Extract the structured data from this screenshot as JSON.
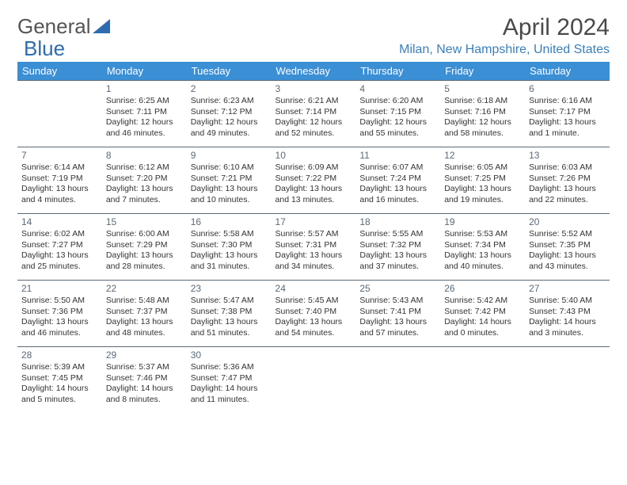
{
  "brand": {
    "part1": "General",
    "part2": "Blue"
  },
  "title": "April 2024",
  "location": "Milan, New Hampshire, United States",
  "colors": {
    "header_bg": "#3b8fd4",
    "header_text": "#ffffff",
    "border": "#5a6a78",
    "location_text": "#3b7fb8",
    "logo_gray": "#555555",
    "logo_blue": "#2e6bb0"
  },
  "day_headers": [
    "Sunday",
    "Monday",
    "Tuesday",
    "Wednesday",
    "Thursday",
    "Friday",
    "Saturday"
  ],
  "weeks": [
    [
      {
        "day": ""
      },
      {
        "day": "1",
        "sunrise": "Sunrise: 6:25 AM",
        "sunset": "Sunset: 7:11 PM",
        "dl1": "Daylight: 12 hours",
        "dl2": "and 46 minutes."
      },
      {
        "day": "2",
        "sunrise": "Sunrise: 6:23 AM",
        "sunset": "Sunset: 7:12 PM",
        "dl1": "Daylight: 12 hours",
        "dl2": "and 49 minutes."
      },
      {
        "day": "3",
        "sunrise": "Sunrise: 6:21 AM",
        "sunset": "Sunset: 7:14 PM",
        "dl1": "Daylight: 12 hours",
        "dl2": "and 52 minutes."
      },
      {
        "day": "4",
        "sunrise": "Sunrise: 6:20 AM",
        "sunset": "Sunset: 7:15 PM",
        "dl1": "Daylight: 12 hours",
        "dl2": "and 55 minutes."
      },
      {
        "day": "5",
        "sunrise": "Sunrise: 6:18 AM",
        "sunset": "Sunset: 7:16 PM",
        "dl1": "Daylight: 12 hours",
        "dl2": "and 58 minutes."
      },
      {
        "day": "6",
        "sunrise": "Sunrise: 6:16 AM",
        "sunset": "Sunset: 7:17 PM",
        "dl1": "Daylight: 13 hours",
        "dl2": "and 1 minute."
      }
    ],
    [
      {
        "day": "7",
        "sunrise": "Sunrise: 6:14 AM",
        "sunset": "Sunset: 7:19 PM",
        "dl1": "Daylight: 13 hours",
        "dl2": "and 4 minutes."
      },
      {
        "day": "8",
        "sunrise": "Sunrise: 6:12 AM",
        "sunset": "Sunset: 7:20 PM",
        "dl1": "Daylight: 13 hours",
        "dl2": "and 7 minutes."
      },
      {
        "day": "9",
        "sunrise": "Sunrise: 6:10 AM",
        "sunset": "Sunset: 7:21 PM",
        "dl1": "Daylight: 13 hours",
        "dl2": "and 10 minutes."
      },
      {
        "day": "10",
        "sunrise": "Sunrise: 6:09 AM",
        "sunset": "Sunset: 7:22 PM",
        "dl1": "Daylight: 13 hours",
        "dl2": "and 13 minutes."
      },
      {
        "day": "11",
        "sunrise": "Sunrise: 6:07 AM",
        "sunset": "Sunset: 7:24 PM",
        "dl1": "Daylight: 13 hours",
        "dl2": "and 16 minutes."
      },
      {
        "day": "12",
        "sunrise": "Sunrise: 6:05 AM",
        "sunset": "Sunset: 7:25 PM",
        "dl1": "Daylight: 13 hours",
        "dl2": "and 19 minutes."
      },
      {
        "day": "13",
        "sunrise": "Sunrise: 6:03 AM",
        "sunset": "Sunset: 7:26 PM",
        "dl1": "Daylight: 13 hours",
        "dl2": "and 22 minutes."
      }
    ],
    [
      {
        "day": "14",
        "sunrise": "Sunrise: 6:02 AM",
        "sunset": "Sunset: 7:27 PM",
        "dl1": "Daylight: 13 hours",
        "dl2": "and 25 minutes."
      },
      {
        "day": "15",
        "sunrise": "Sunrise: 6:00 AM",
        "sunset": "Sunset: 7:29 PM",
        "dl1": "Daylight: 13 hours",
        "dl2": "and 28 minutes."
      },
      {
        "day": "16",
        "sunrise": "Sunrise: 5:58 AM",
        "sunset": "Sunset: 7:30 PM",
        "dl1": "Daylight: 13 hours",
        "dl2": "and 31 minutes."
      },
      {
        "day": "17",
        "sunrise": "Sunrise: 5:57 AM",
        "sunset": "Sunset: 7:31 PM",
        "dl1": "Daylight: 13 hours",
        "dl2": "and 34 minutes."
      },
      {
        "day": "18",
        "sunrise": "Sunrise: 5:55 AM",
        "sunset": "Sunset: 7:32 PM",
        "dl1": "Daylight: 13 hours",
        "dl2": "and 37 minutes."
      },
      {
        "day": "19",
        "sunrise": "Sunrise: 5:53 AM",
        "sunset": "Sunset: 7:34 PM",
        "dl1": "Daylight: 13 hours",
        "dl2": "and 40 minutes."
      },
      {
        "day": "20",
        "sunrise": "Sunrise: 5:52 AM",
        "sunset": "Sunset: 7:35 PM",
        "dl1": "Daylight: 13 hours",
        "dl2": "and 43 minutes."
      }
    ],
    [
      {
        "day": "21",
        "sunrise": "Sunrise: 5:50 AM",
        "sunset": "Sunset: 7:36 PM",
        "dl1": "Daylight: 13 hours",
        "dl2": "and 46 minutes."
      },
      {
        "day": "22",
        "sunrise": "Sunrise: 5:48 AM",
        "sunset": "Sunset: 7:37 PM",
        "dl1": "Daylight: 13 hours",
        "dl2": "and 48 minutes."
      },
      {
        "day": "23",
        "sunrise": "Sunrise: 5:47 AM",
        "sunset": "Sunset: 7:38 PM",
        "dl1": "Daylight: 13 hours",
        "dl2": "and 51 minutes."
      },
      {
        "day": "24",
        "sunrise": "Sunrise: 5:45 AM",
        "sunset": "Sunset: 7:40 PM",
        "dl1": "Daylight: 13 hours",
        "dl2": "and 54 minutes."
      },
      {
        "day": "25",
        "sunrise": "Sunrise: 5:43 AM",
        "sunset": "Sunset: 7:41 PM",
        "dl1": "Daylight: 13 hours",
        "dl2": "and 57 minutes."
      },
      {
        "day": "26",
        "sunrise": "Sunrise: 5:42 AM",
        "sunset": "Sunset: 7:42 PM",
        "dl1": "Daylight: 14 hours",
        "dl2": "and 0 minutes."
      },
      {
        "day": "27",
        "sunrise": "Sunrise: 5:40 AM",
        "sunset": "Sunset: 7:43 PM",
        "dl1": "Daylight: 14 hours",
        "dl2": "and 3 minutes."
      }
    ],
    [
      {
        "day": "28",
        "sunrise": "Sunrise: 5:39 AM",
        "sunset": "Sunset: 7:45 PM",
        "dl1": "Daylight: 14 hours",
        "dl2": "and 5 minutes."
      },
      {
        "day": "29",
        "sunrise": "Sunrise: 5:37 AM",
        "sunset": "Sunset: 7:46 PM",
        "dl1": "Daylight: 14 hours",
        "dl2": "and 8 minutes."
      },
      {
        "day": "30",
        "sunrise": "Sunrise: 5:36 AM",
        "sunset": "Sunset: 7:47 PM",
        "dl1": "Daylight: 14 hours",
        "dl2": "and 11 minutes."
      },
      {
        "day": ""
      },
      {
        "day": ""
      },
      {
        "day": ""
      },
      {
        "day": ""
      }
    ]
  ]
}
